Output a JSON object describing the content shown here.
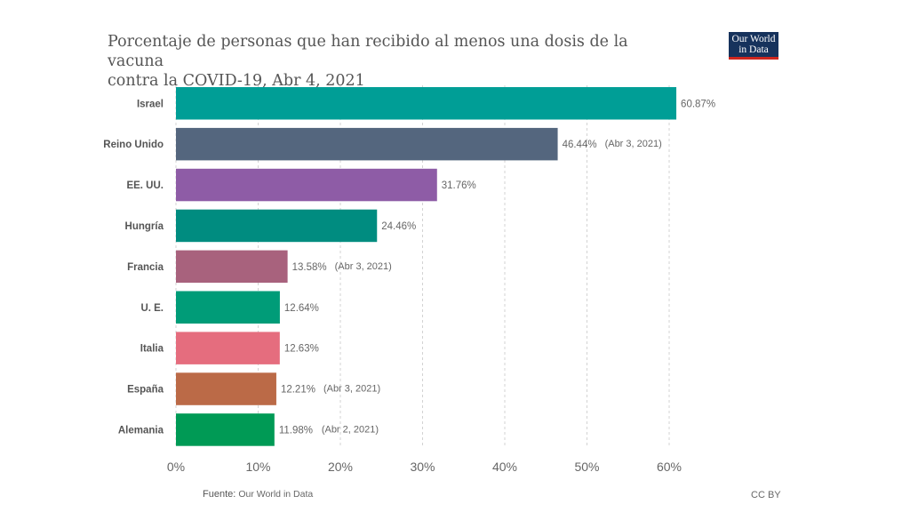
{
  "title_line1": "Porcentaje de personas que han recibido al menos una dosis de la vacuna",
  "title_line2": "contra la COVID-19, Abr 4, 2021",
  "logo": {
    "line1": "Our World",
    "line2": "in Data",
    "bg": "#16325c",
    "accent": "#ce261e"
  },
  "footer": {
    "source_label": "Fuente:",
    "source_value": "Our World in Data",
    "license": "CC BY"
  },
  "chart_data": {
    "type": "bar",
    "orientation": "horizontal",
    "xlim": [
      0,
      60
    ],
    "x_ticks": [
      "0%",
      "10%",
      "20%",
      "30%",
      "40%",
      "50%",
      "60%"
    ],
    "grid": true,
    "bars": [
      {
        "category": "Israel",
        "value": 60.87,
        "label": "60.87%",
        "note": "",
        "color": "#009e96"
      },
      {
        "category": "Reino Unido",
        "value": 46.44,
        "label": "46.44%",
        "note": "(Abr 3, 2021)",
        "color": "#54667e"
      },
      {
        "category": "EE. UU.",
        "value": 31.76,
        "label": "31.76%",
        "note": "",
        "color": "#8e5ca6"
      },
      {
        "category": "Hungría",
        "value": 24.46,
        "label": "24.46%",
        "note": "",
        "color": "#008c80"
      },
      {
        "category": "Francia",
        "value": 13.58,
        "label": "13.58%",
        "note": "(Abr 3, 2021)",
        "color": "#a8627d"
      },
      {
        "category": "U. E.",
        "value": 12.64,
        "label": "12.64%",
        "note": "",
        "color": "#009c78"
      },
      {
        "category": "Italia",
        "value": 12.63,
        "label": "12.63%",
        "note": "",
        "color": "#e56d7e"
      },
      {
        "category": "España",
        "value": 12.21,
        "label": "12.21%",
        "note": "(Abr 3, 2021)",
        "color": "#bb6a47"
      },
      {
        "category": "Alemania",
        "value": 11.98,
        "label": "11.98%",
        "note": "(Abr 2, 2021)",
        "color": "#009a55"
      }
    ]
  }
}
